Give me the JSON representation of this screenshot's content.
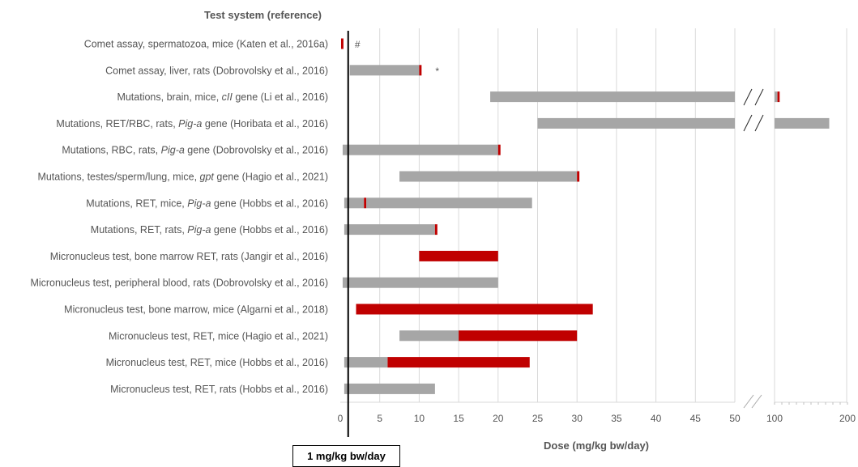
{
  "chart_data": {
    "type": "bar",
    "subtype": "floating-horizontal-range",
    "title": "",
    "y_heading": "Test system (reference)",
    "xlabel": "Dose (mg/kg bw/day)",
    "x_ticks_main": [
      "0",
      "5",
      "10",
      "15",
      "20",
      "25",
      "30",
      "35",
      "40",
      "45",
      "50"
    ],
    "x_ticks_broken": [
      "100",
      "200"
    ],
    "x_axis_break_after": 50,
    "xlim_main": [
      0,
      50
    ],
    "xlim_broken": [
      100,
      200
    ],
    "reference_line": {
      "value": 1,
      "label": "1 mg/kg bw/day"
    },
    "colors": {
      "gray": "#a6a6a6",
      "red": "#c00000",
      "grid": "#d9d9d9"
    },
    "rows": [
      {
        "label": "Comet assay, spermatozoa, mice (Katen et al., 2016a)",
        "segments": [
          {
            "start": 0.1,
            "end": 0.4,
            "color": "red"
          }
        ],
        "annotation": "#"
      },
      {
        "label": "Comet assay, liver, rats (Dobrovolsky et al., 2016)",
        "segments": [
          {
            "start": 1.2,
            "end": 10.0,
            "color": "gray"
          },
          {
            "start": 10.0,
            "end": 10.3,
            "color": "red"
          }
        ],
        "annotation": "*"
      },
      {
        "label_parts": [
          "Mutations, brain, mice, ",
          "cII",
          " gene (Li et al., 2016)"
        ],
        "segments": [
          {
            "start": 19,
            "end": 50,
            "color": "gray"
          },
          {
            "start": 100,
            "end": 104,
            "color": "gray"
          },
          {
            "start": 104,
            "end": 107,
            "color": "red"
          }
        ]
      },
      {
        "label_parts": [
          "Mutations, RET/RBC, rats, ",
          "Pig-a",
          " gene (Horibata et al., 2016)"
        ],
        "segments": [
          {
            "start": 25,
            "end": 50,
            "color": "gray"
          },
          {
            "start": 100,
            "end": 175,
            "color": "gray"
          }
        ]
      },
      {
        "label_parts": [
          "Mutations, RBC, rats, ",
          "Pig-a",
          " gene (Dobrovolsky et al., 2016)"
        ],
        "segments": [
          {
            "start": 0.3,
            "end": 20.0,
            "color": "gray"
          },
          {
            "start": 20.0,
            "end": 20.3,
            "color": "red"
          }
        ]
      },
      {
        "label_parts": [
          "Mutations, testes/sperm/lung, mice, ",
          "gpt",
          " gene (Hagio et al., 2021)"
        ],
        "segments": [
          {
            "start": 7.5,
            "end": 30.0,
            "color": "gray"
          },
          {
            "start": 30.0,
            "end": 30.3,
            "color": "red"
          }
        ]
      },
      {
        "label_parts": [
          "Mutations, RET, mice, ",
          "Pig-a",
          " gene (Hobbs et al., 2016)"
        ],
        "segments": [
          {
            "start": 0.5,
            "end": 3.0,
            "color": "gray"
          },
          {
            "start": 3.0,
            "end": 3.3,
            "color": "red"
          },
          {
            "start": 3.3,
            "end": 24.3,
            "color": "gray"
          }
        ]
      },
      {
        "label_parts": [
          "Mutations, RET, rats, ",
          "Pig-a",
          " gene (Hobbs et al., 2016)"
        ],
        "segments": [
          {
            "start": 0.5,
            "end": 12.0,
            "color": "gray"
          },
          {
            "start": 12.0,
            "end": 12.3,
            "color": "red"
          }
        ]
      },
      {
        "label": "Micronucleus test, bone marrow RET, rats (Jangir et al., 2016)",
        "segments": [
          {
            "start": 10,
            "end": 20,
            "color": "red"
          }
        ]
      },
      {
        "label": "Micronucleus test, peripheral blood, rats (Dobrovolsky et al., 2016)",
        "segments": [
          {
            "start": 0.3,
            "end": 20,
            "color": "gray"
          }
        ]
      },
      {
        "label": "Micronucleus test, bone marrow, mice (Algarni et al., 2018)",
        "segments": [
          {
            "start": 2,
            "end": 32,
            "color": "red"
          }
        ]
      },
      {
        "label": "Micronucleus test, RET, mice (Hagio et al., 2021)",
        "segments": [
          {
            "start": 7.5,
            "end": 15,
            "color": "gray"
          },
          {
            "start": 15,
            "end": 30,
            "color": "red"
          }
        ]
      },
      {
        "label": "Micronucleus test, RET, mice (Hobbs et al., 2016)",
        "segments": [
          {
            "start": 0.5,
            "end": 6,
            "color": "gray"
          },
          {
            "start": 6,
            "end": 24,
            "color": "red"
          }
        ]
      },
      {
        "label": "Micronucleus test, RET, rats (Hobbs et al., 2016)",
        "segments": [
          {
            "start": 0.5,
            "end": 12,
            "color": "gray"
          }
        ]
      }
    ]
  }
}
